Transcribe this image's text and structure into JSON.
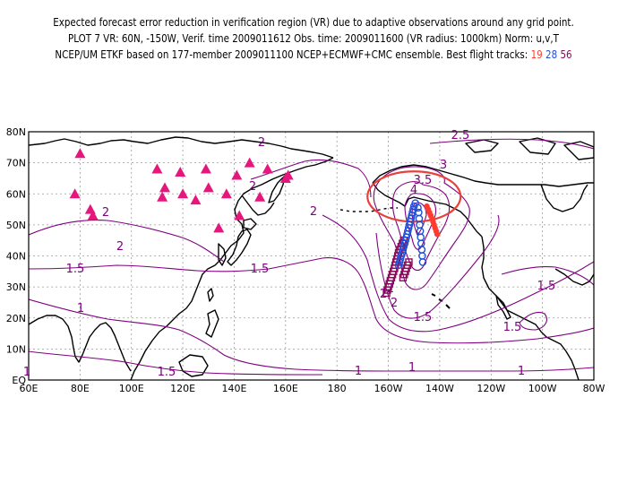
{
  "title": {
    "line1": "Expected forecast error reduction in verification region (VR) due to adaptive observations around any grid point.",
    "line2": "PLOT 7 VR: 60N, -150W, Verif. time 2009011612 Obs. time: 2009011600 (VR radius: 1000km) Norm: u,v,T",
    "line3_prefix": "NCEP/UM ETKF based on 177-member 2009011100 NCEP+ECMWF+CMC ensemble. Best flight tracks:",
    "track_a": "19",
    "track_b": "28",
    "track_c": "56"
  },
  "colors": {
    "contour": "#800080",
    "coast": "#000000",
    "grid": "#9a9a9a",
    "verification_circle": "#e8403a",
    "triangle": "#e5177d",
    "track_a": "#ff3b30",
    "track_b": "#1e4fd8",
    "track_c": "#8b0a5a"
  },
  "map": {
    "lon_labels": [
      "60E",
      "80E",
      "100E",
      "120E",
      "140E",
      "160E",
      "180",
      "160W",
      "140W",
      "120W",
      "100W",
      "80W"
    ],
    "lat_labels": [
      "EQ",
      "10N",
      "20N",
      "30N",
      "40N",
      "50N",
      "60N",
      "70N",
      "80N"
    ],
    "contour_labels": [
      "2.5",
      "3",
      "3.5",
      "4",
      "2",
      "2",
      "2",
      "2",
      "2",
      "2",
      "1.5",
      "1.5",
      "1.5",
      "1.5",
      "1.5",
      "1.5",
      "1",
      "1",
      "1",
      "1",
      "1",
      "2",
      "2"
    ],
    "verification_region": {
      "lat": 60,
      "lon": -150,
      "radius_km": 1000
    },
    "triangle_sites": [
      {
        "lat": 73,
        "lon": 80
      },
      {
        "lat": 68,
        "lon": 110
      },
      {
        "lat": 67,
        "lon": 119
      },
      {
        "lat": 68,
        "lon": 129
      },
      {
        "lat": 66,
        "lon": 141
      },
      {
        "lat": 70,
        "lon": 146
      },
      {
        "lat": 68,
        "lon": 153
      },
      {
        "lat": 66,
        "lon": 161
      },
      {
        "lat": 60,
        "lon": 78
      },
      {
        "lat": 55,
        "lon": 84
      },
      {
        "lat": 53,
        "lon": 85
      },
      {
        "lat": 62,
        "lon": 113
      },
      {
        "lat": 59,
        "lon": 112
      },
      {
        "lat": 60,
        "lon": 120
      },
      {
        "lat": 58,
        "lon": 125
      },
      {
        "lat": 62,
        "lon": 130
      },
      {
        "lat": 60,
        "lon": 137
      },
      {
        "lat": 59,
        "lon": 150
      },
      {
        "lat": 53,
        "lon": 142
      },
      {
        "lat": 49,
        "lon": 134
      },
      {
        "lat": 65,
        "lon": 160
      }
    ],
    "track_points": {
      "track_a": [
        [
          56,
          -145
        ],
        [
          55,
          -144.5
        ],
        [
          54,
          -144
        ],
        [
          53,
          -143.5
        ],
        [
          52,
          -143
        ],
        [
          51,
          -142.6
        ],
        [
          50,
          -142.2
        ],
        [
          49,
          -141.8
        ],
        [
          48,
          -141.4
        ],
        [
          47,
          -141
        ]
      ],
      "track_b": [
        [
          56,
          -150
        ],
        [
          55,
          -150.3
        ],
        [
          54,
          -150.6
        ],
        [
          53,
          -150.9
        ],
        [
          52,
          -151.2
        ],
        [
          51,
          -151.5
        ],
        [
          50,
          -151.8
        ],
        [
          49,
          -152.1
        ],
        [
          48,
          -152.4
        ],
        [
          47,
          -152.7
        ],
        [
          46,
          -153
        ],
        [
          45,
          -153.3
        ],
        [
          44,
          -153.6
        ],
        [
          43,
          -154
        ],
        [
          42,
          -154.3
        ],
        [
          41,
          -154.6
        ],
        [
          40,
          -155
        ],
        [
          39,
          -155.3
        ],
        [
          38,
          -155.6
        ],
        [
          37,
          -156
        ],
        [
          57,
          -149.5
        ],
        [
          55.5,
          -148.5
        ],
        [
          54,
          -148.2
        ],
        [
          52,
          -148
        ],
        [
          50,
          -147.8
        ],
        [
          48,
          -147.6
        ],
        [
          46,
          -147.4
        ],
        [
          44,
          -147.2
        ],
        [
          42,
          -147
        ],
        [
          40,
          -146.8
        ],
        [
          38,
          -146.6
        ]
      ],
      "track_c": [
        [
          45,
          -154
        ],
        [
          44,
          -154.5
        ],
        [
          43,
          -155
        ],
        [
          42,
          -155.5
        ],
        [
          41,
          -156
        ],
        [
          40,
          -156.3
        ],
        [
          39,
          -156.6
        ],
        [
          38,
          -157
        ],
        [
          37,
          -157.3
        ],
        [
          36,
          -157.6
        ],
        [
          35,
          -158
        ],
        [
          34,
          -158.4
        ],
        [
          33,
          -158.8
        ],
        [
          32,
          -159.2
        ],
        [
          31,
          -159.6
        ],
        [
          30,
          -160
        ],
        [
          29,
          -160.4
        ],
        [
          28,
          -160.7
        ],
        [
          38,
          -152
        ],
        [
          37,
          -152.5
        ],
        [
          36,
          -153
        ],
        [
          35,
          -153.4
        ],
        [
          34,
          -153.8
        ],
        [
          33,
          -154.3
        ]
      ]
    }
  }
}
